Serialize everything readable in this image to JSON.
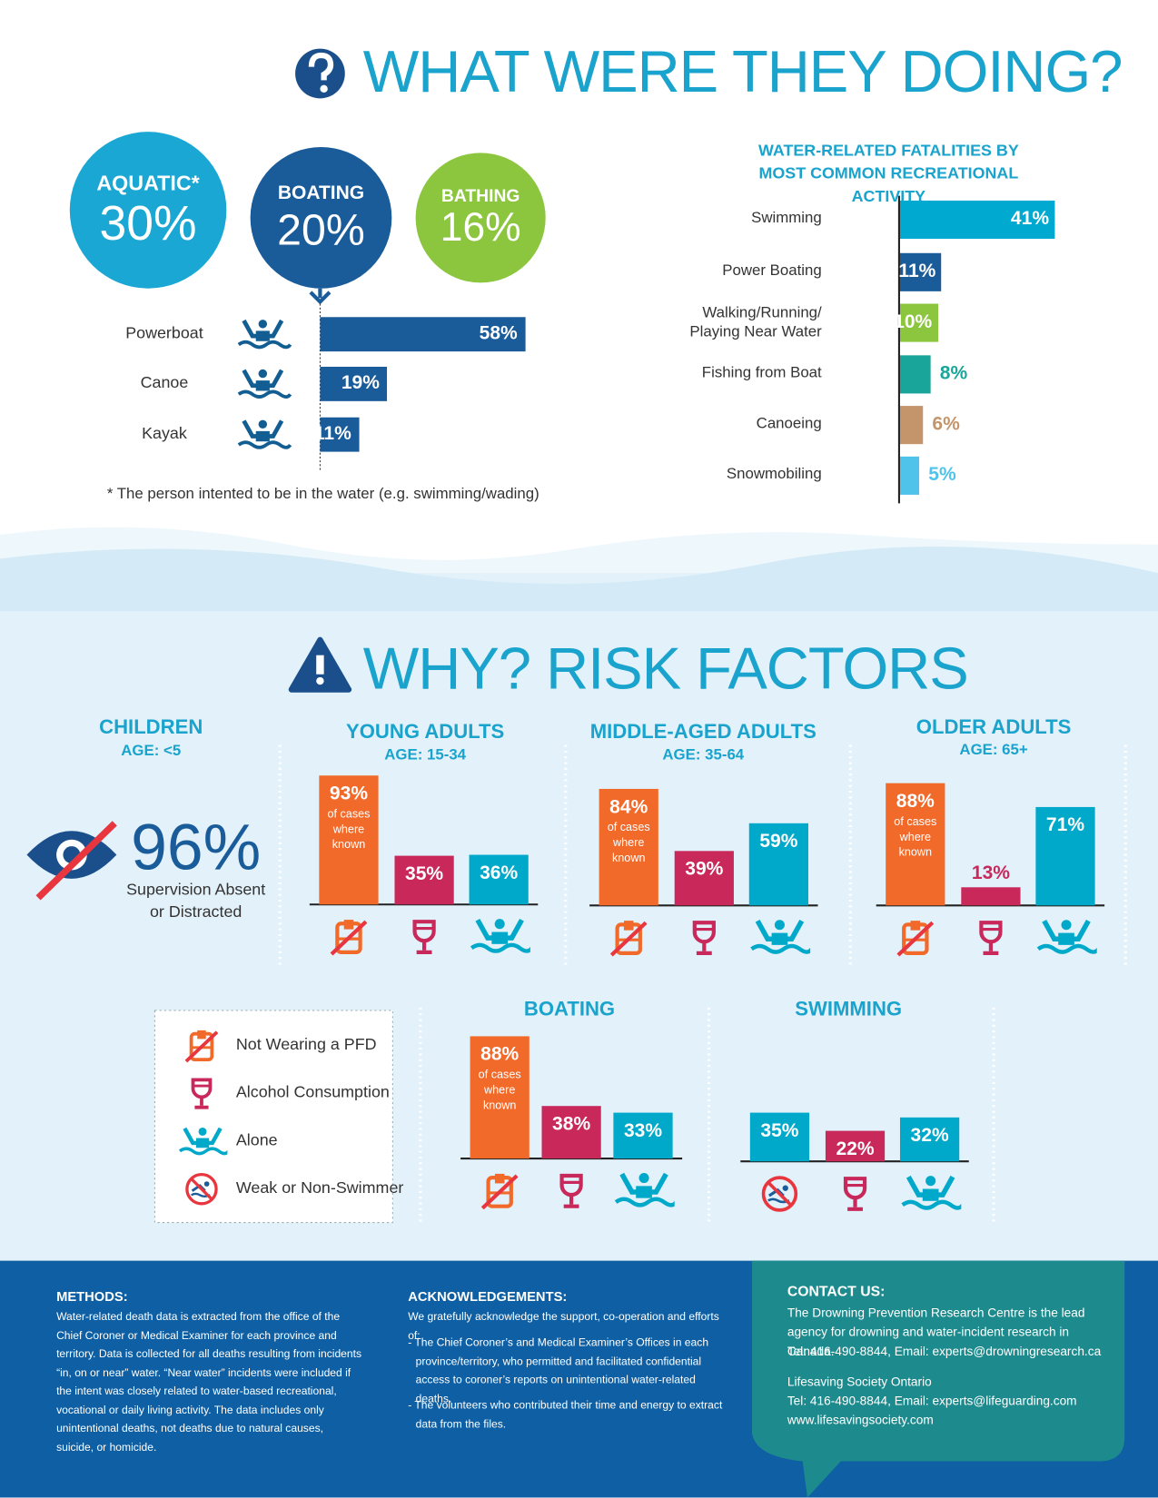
{
  "what_doing": {
    "title": "WHAT WERE THEY DOING?",
    "circles": [
      {
        "label": "AQUATIC*",
        "value": 30,
        "value_label": "30%",
        "color": "#1aa7d4"
      },
      {
        "label": "BOATING",
        "value": 20,
        "value_label": "20%",
        "color": "#1a5b9a"
      },
      {
        "label": "BATHING",
        "value": 16,
        "value_label": "16%",
        "color": "#8cc63f"
      }
    ],
    "boating_breakdown": {
      "categories": [
        "Powerboat",
        "Canoe",
        "Kayak"
      ],
      "values": [
        58,
        19,
        11
      ],
      "value_labels": [
        "58%",
        "19%",
        "11%"
      ],
      "color": "#1a5b9a"
    },
    "footnote": "* The person intented to be in the water (e.g. swimming/wading)",
    "activity_chart": {
      "title": "WATER-RELATED FATALITIES BY MOST COMMON RECREATIONAL ACTIVITY",
      "categories": [
        "Swimming",
        "Power Boating",
        "Walking/Running/ Playing Near Water",
        "Fishing from Boat",
        "Canoeing",
        "Snowmobiling"
      ],
      "values": [
        41,
        11,
        10,
        8,
        6,
        5
      ],
      "value_labels": [
        "41%",
        "11%",
        "10%",
        "8%",
        "6%",
        "5%"
      ],
      "colors": [
        "#00a9cf",
        "#1a5b9a",
        "#8cc63f",
        "#1aa59a",
        "#c4956a",
        "#4fc3ea"
      ]
    }
  },
  "risk_factors": {
    "title": "WHY? RISK FACTORS",
    "children": {
      "title": "CHILDREN",
      "age": "AGE: <5",
      "value": 96,
      "value_label": "96%",
      "caption": "Supervision Absent or Distracted"
    },
    "groups": [
      {
        "title": "YOUNG ADULTS",
        "age": "AGE: 15-34",
        "values": [
          93,
          35,
          36
        ],
        "value_labels": [
          "93%",
          "35%",
          "36%"
        ],
        "note": "of cases where known",
        "colors": [
          "#f26a2a",
          "#c8285a",
          "#00a9c9"
        ]
      },
      {
        "title": "MIDDLE-AGED ADULTS",
        "age": "AGE: 35-64",
        "values": [
          84,
          39,
          59
        ],
        "value_labels": [
          "84%",
          "39%",
          "59%"
        ],
        "note": "of cases where known",
        "colors": [
          "#f26a2a",
          "#c8285a",
          "#00a9c9"
        ]
      },
      {
        "title": "OLDER ADULTS",
        "age": "AGE: 65+",
        "values": [
          88,
          13,
          71
        ],
        "value_labels": [
          "88%",
          "13%",
          "71%"
        ],
        "note": "of cases where known",
        "colors": [
          "#f26a2a",
          "#c8285a",
          "#00a9c9"
        ]
      },
      {
        "title": "BOATING",
        "values": [
          88,
          38,
          33
        ],
        "value_labels": [
          "88%",
          "38%",
          "33%"
        ],
        "note": "of cases where known",
        "colors": [
          "#f26a2a",
          "#c8285a",
          "#00a9c9"
        ]
      },
      {
        "title": "SWIMMING",
        "values": [
          35,
          22,
          32
        ],
        "value_labels": [
          "35%",
          "22%",
          "32%"
        ],
        "colors": [
          "#00a9c9",
          "#c8285a",
          "#00a9c9"
        ]
      }
    ],
    "legend": [
      "Not Wearing a PFD",
      "Alcohol Consumption",
      "Alone",
      "Weak or Non-Swimmer"
    ]
  },
  "footer": {
    "methods": {
      "title": "METHODS:",
      "text": "Water-related death data is extracted from the office of the Chief Coroner or Medical Examiner for each province and territory. Data is collected for all deaths resulting from incidents “in, on or near” water. “Near water” incidents were included if the intent was closely related to water-based recreational, vocational or daily living activity. The data includes only unintentional deaths, not deaths due to natural causes, suicide, or homicide."
    },
    "acknowledgements": {
      "title": "ACKNOWLEDGEMENTS:",
      "intro": "We gratefully acknowledge the support, co-operation and efforts of:",
      "items": [
        "- The Chief Coroner’s and Medical Examiner’s Offices in each province/territory, who permitted and facilitated confidential access to coroner’s reports on unintentional water-related deaths.",
        "- The volunteers who contributed their time and energy to extract data from the files."
      ]
    },
    "contact": {
      "title": "CONTACT US:",
      "lines": [
        "The Drowning Prevention Research Centre is the lead agency for drowning and water-incident research in Canada.",
        "Tel: 416-490-8844, Email: experts@drowningresearch.ca",
        "Lifesaving Society Ontario",
        "Tel: 416-490-8844, Email: experts@lifeguarding.com",
        "www.lifesavingsociety.com"
      ]
    }
  }
}
